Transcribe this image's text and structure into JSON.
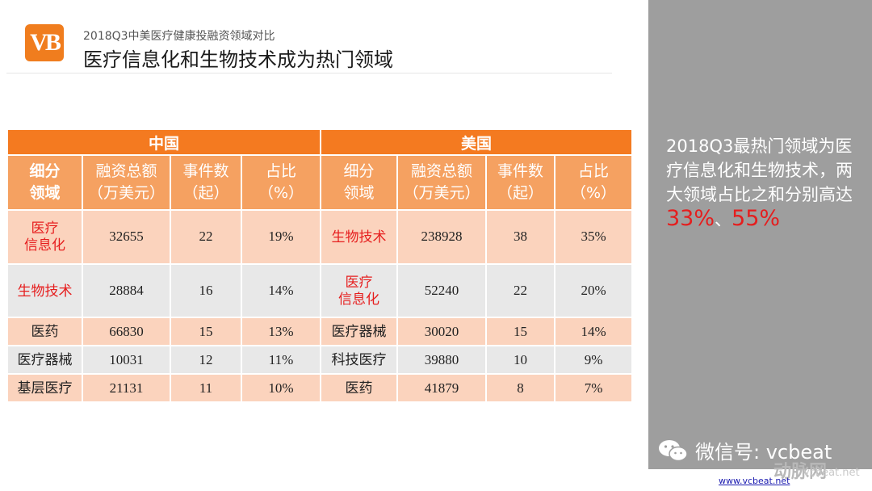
{
  "header": {
    "logo_text": "VB",
    "subtitle": "2018Q3中美医疗健康投融资领域对比",
    "title": "医疗信息化和生物技术成为热门领域"
  },
  "table": {
    "group_headers": [
      "中国",
      "美国"
    ],
    "column_headers": {
      "field": [
        "细分",
        "领域"
      ],
      "field_us": [
        "细分",
        "领域"
      ],
      "amount": [
        "融资总额",
        "（万美元）"
      ],
      "events": [
        "事件数",
        "（起）"
      ],
      "share": [
        "占比",
        "（%）"
      ]
    },
    "rows": [
      {
        "cn_field": [
          "医疗",
          "信息化"
        ],
        "cn_amount": "32655",
        "cn_events": "22",
        "cn_share": "19%",
        "us_field": [
          "生物技术"
        ],
        "us_amount": "238928",
        "us_events": "38",
        "us_share": "35%"
      },
      {
        "cn_field": [
          "生物技术"
        ],
        "cn_amount": "28884",
        "cn_events": "16",
        "cn_share": "14%",
        "us_field": [
          "医疗",
          "信息化"
        ],
        "us_amount": "52240",
        "us_events": "22",
        "us_share": "20%"
      },
      {
        "cn_field": [
          "医药"
        ],
        "cn_amount": "66830",
        "cn_events": "15",
        "cn_share": "13%",
        "us_field": [
          "医疗器械"
        ],
        "us_amount": "30020",
        "us_events": "15",
        "us_share": "14%"
      },
      {
        "cn_field": [
          "医疗器械"
        ],
        "cn_amount": "10031",
        "cn_events": "12",
        "cn_share": "11%",
        "us_field": [
          "科技医疗"
        ],
        "us_amount": "39880",
        "us_events": "10",
        "us_share": "9%"
      },
      {
        "cn_field": [
          "基层医疗"
        ],
        "cn_amount": "21131",
        "cn_events": "11",
        "cn_share": "10%",
        "us_field": [
          "医药"
        ],
        "us_amount": "41879",
        "us_events": "8",
        "us_share": "7%"
      }
    ]
  },
  "side": {
    "text_before": "2018Q3最热门领域为医疗信息化和生物技术，两大领域占比之和分别高达",
    "pct1": "33%",
    "sep": "、",
    "pct2": "55%"
  },
  "footer": {
    "wechat_label": "微信号: vcbeat",
    "watermark": "动脉网",
    "watermark_sub": "vcbeat.net",
    "url": "www.vcbeat.net"
  },
  "colors": {
    "accent_orange": "#f47a20",
    "header_light_orange": "#f5a161",
    "row_peach": "#fbd3bd",
    "row_gray": "#e8e8e8",
    "highlight_red": "#e61e1e",
    "side_panel": "#9e9e9e"
  }
}
